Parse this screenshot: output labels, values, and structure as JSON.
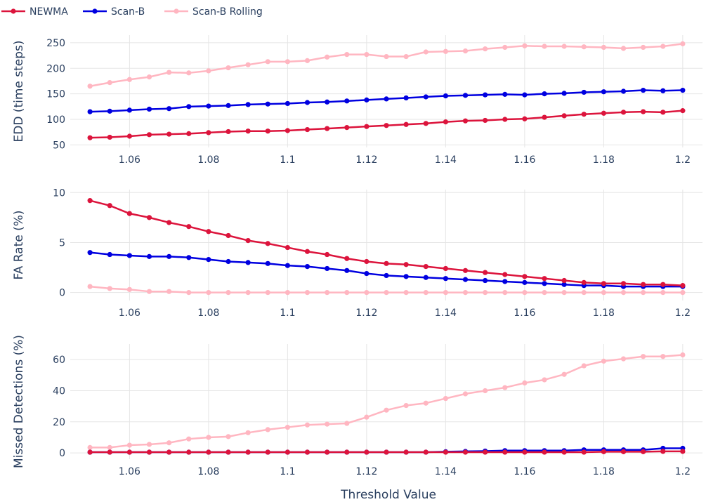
{
  "chart_data": {
    "type": "line",
    "x_axis": {
      "label": "Threshold Value",
      "range": [
        1.045,
        1.205
      ],
      "ticks": [
        1.06,
        1.08,
        1.1,
        1.12,
        1.14,
        1.16,
        1.18,
        1.2
      ],
      "tick_labels": [
        "1.06",
        "1.08",
        "1.1",
        "1.12",
        "1.14",
        "1.16",
        "1.18",
        "1.2"
      ]
    },
    "x": [
      1.05,
      1.055,
      1.06,
      1.065,
      1.07,
      1.075,
      1.08,
      1.085,
      1.09,
      1.095,
      1.1,
      1.105,
      1.11,
      1.115,
      1.12,
      1.125,
      1.13,
      1.135,
      1.14,
      1.145,
      1.15,
      1.155,
      1.16,
      1.165,
      1.17,
      1.175,
      1.18,
      1.185,
      1.19,
      1.195,
      1.2
    ],
    "legend": {
      "placement": "top-left",
      "entries": [
        "NEWMA",
        "Scan-B",
        "Scan-B Rolling"
      ]
    },
    "colors": {
      "NEWMA": "#dc143c",
      "Scan-B": "#0000e0",
      "Scan-B Rolling": "#ffb6c1"
    },
    "grid": true,
    "panels": [
      {
        "ylabel": "EDD (time steps)",
        "ylim": [
          45,
          265
        ],
        "yticks": [
          50,
          100,
          150,
          200,
          250
        ],
        "series": [
          {
            "name": "NEWMA",
            "values": [
              64,
              65,
              67,
              70,
              71,
              72,
              74,
              76,
              77,
              77,
              78,
              80,
              82,
              84,
              86,
              88,
              90,
              92,
              95,
              97,
              98,
              100,
              101,
              104,
              107,
              110,
              112,
              114,
              115,
              114,
              117
            ]
          },
          {
            "name": "Scan-B",
            "values": [
              115,
              116,
              118,
              120,
              121,
              125,
              126,
              127,
              129,
              130,
              131,
              133,
              134,
              136,
              138,
              140,
              142,
              144,
              146,
              147,
              148,
              149,
              148,
              150,
              151,
              153,
              154,
              155,
              157,
              156,
              157
            ]
          },
          {
            "name": "Scan-B Rolling",
            "values": [
              165,
              172,
              178,
              183,
              192,
              191,
              195,
              201,
              207,
              213,
              213,
              215,
              222,
              227,
              227,
              223,
              223,
              232,
              233,
              234,
              238,
              241,
              244,
              243,
              243,
              242,
              241,
              239,
              241,
              243,
              248
            ]
          }
        ]
      },
      {
        "ylabel": "FA Rate (%)",
        "ylim": [
          -0.8,
          10.3
        ],
        "yticks": [
          0,
          5,
          10
        ],
        "series": [
          {
            "name": "NEWMA",
            "values": [
              9.2,
              8.7,
              7.9,
              7.5,
              7.0,
              6.6,
              6.1,
              5.7,
              5.2,
              4.9,
              4.5,
              4.1,
              3.8,
              3.4,
              3.1,
              2.9,
              2.8,
              2.6,
              2.4,
              2.2,
              2.0,
              1.8,
              1.6,
              1.4,
              1.2,
              1.0,
              0.9,
              0.9,
              0.8,
              0.8,
              0.7
            ]
          },
          {
            "name": "Scan-B",
            "values": [
              4.0,
              3.8,
              3.7,
              3.6,
              3.6,
              3.5,
              3.3,
              3.1,
              3.0,
              2.9,
              2.7,
              2.6,
              2.4,
              2.2,
              1.9,
              1.7,
              1.6,
              1.5,
              1.4,
              1.3,
              1.2,
              1.1,
              1.0,
              0.9,
              0.8,
              0.7,
              0.7,
              0.6,
              0.6,
              0.6,
              0.6
            ]
          },
          {
            "name": "Scan-B Rolling",
            "values": [
              0.6,
              0.4,
              0.3,
              0.1,
              0.1,
              0.0,
              0.0,
              0.0,
              0.0,
              0.0,
              0.0,
              0.0,
              0.0,
              0.0,
              0.0,
              0.0,
              0.0,
              0.0,
              0.0,
              0.0,
              0.0,
              0.0,
              0.0,
              0.0,
              0.0,
              0.0,
              0.0,
              0.0,
              0.0,
              0.0,
              0.0
            ]
          }
        ]
      },
      {
        "ylabel": "Missed Detections (%)",
        "ylim": [
          -4,
          70
        ],
        "yticks": [
          0,
          20,
          40,
          60
        ],
        "series": [
          {
            "name": "NEWMA",
            "values": [
              0.5,
              0.5,
              0.5,
              0.5,
              0.5,
              0.5,
              0.5,
              0.5,
              0.5,
              0.5,
              0.5,
              0.5,
              0.5,
              0.5,
              0.5,
              0.5,
              0.5,
              0.5,
              0.5,
              0.5,
              0.5,
              0.5,
              0.5,
              0.5,
              0.5,
              0.5,
              0.8,
              0.8,
              0.8,
              1.0,
              1.0
            ]
          },
          {
            "name": "Scan-B",
            "values": [
              0.5,
              0.5,
              0.5,
              0.5,
              0.5,
              0.5,
              0.5,
              0.5,
              0.5,
              0.5,
              0.5,
              0.5,
              0.5,
              0.5,
              0.5,
              0.5,
              0.5,
              0.5,
              0.8,
              1.0,
              1.2,
              1.5,
              1.5,
              1.5,
              1.5,
              2.0,
              2.0,
              2.0,
              2.0,
              3.0,
              3.0
            ]
          },
          {
            "name": "Scan-B Rolling",
            "values": [
              3.5,
              3.5,
              5,
              5.5,
              6.5,
              9,
              10,
              10.5,
              13,
              15,
              16.5,
              18,
              18.5,
              19,
              23,
              27.5,
              30.5,
              32,
              35,
              38,
              40,
              42,
              45,
              47,
              50.5,
              56,
              59,
              60.5,
              62,
              62,
              63
            ]
          }
        ]
      }
    ]
  }
}
